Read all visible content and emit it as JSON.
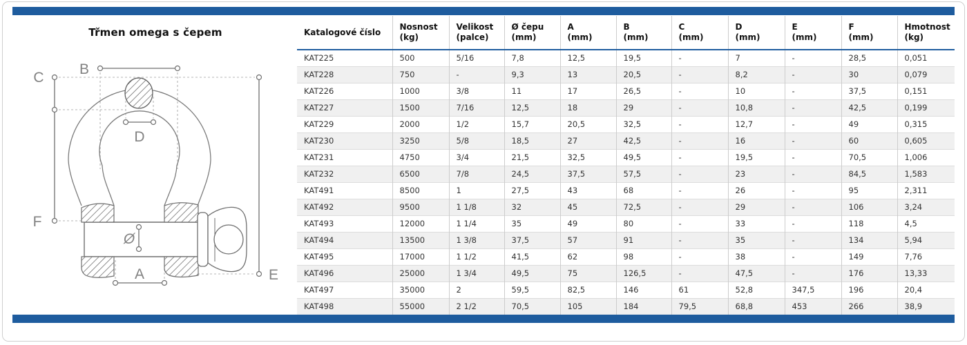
{
  "header": {
    "title": "Třmen omega s čepem"
  },
  "colors": {
    "accent": "#1e5c9e"
  },
  "diagram": {
    "labels": {
      "b": "B",
      "c": "C",
      "d": "D",
      "f": "F",
      "diameter": "Ø",
      "a": "A",
      "e": "E"
    }
  },
  "table": {
    "columns": [
      {
        "name": "Katalogové číslo",
        "unit": ""
      },
      {
        "name": "Nosnost",
        "unit": "(kg)"
      },
      {
        "name": "Velikost",
        "unit": "(palce)"
      },
      {
        "name": "Ø čepu",
        "unit": "(mm)"
      },
      {
        "name": "A",
        "unit": "(mm)"
      },
      {
        "name": "B",
        "unit": "(mm)"
      },
      {
        "name": "C",
        "unit": "(mm)"
      },
      {
        "name": "D",
        "unit": "(mm)"
      },
      {
        "name": "E",
        "unit": "(mm)"
      },
      {
        "name": "F",
        "unit": "(mm)"
      },
      {
        "name": "Hmotnost",
        "unit": "(kg)"
      }
    ],
    "rows": [
      [
        "KAT225",
        "500",
        "5/16",
        "7,8",
        "12,5",
        "19,5",
        "-",
        "7",
        "-",
        "28,5",
        "0,051"
      ],
      [
        "KAT228",
        "750",
        "-",
        "9,3",
        "13",
        "20,5",
        "-",
        "8,2",
        "-",
        "30",
        "0,079"
      ],
      [
        "KAT226",
        "1000",
        "3/8",
        "11",
        "17",
        "26,5",
        "-",
        "10",
        "-",
        "37,5",
        "0,151"
      ],
      [
        "KAT227",
        "1500",
        "7/16",
        "12,5",
        "18",
        "29",
        "-",
        "10,8",
        "-",
        "42,5",
        "0,199"
      ],
      [
        "KAT229",
        "2000",
        "1/2",
        "15,7",
        "20,5",
        "32,5",
        "-",
        "12,7",
        "-",
        "49",
        "0,315"
      ],
      [
        "KAT230",
        "3250",
        "5/8",
        "18,5",
        "27",
        "42,5",
        "-",
        "16",
        "-",
        "60",
        "0,605"
      ],
      [
        "KAT231",
        "4750",
        "3/4",
        "21,5",
        "32,5",
        "49,5",
        "-",
        "19,5",
        "-",
        "70,5",
        "1,006"
      ],
      [
        "KAT232",
        "6500",
        "7/8",
        "24,5",
        "37,5",
        "57,5",
        "-",
        "23",
        "-",
        "84,5",
        "1,583"
      ],
      [
        "KAT491",
        "8500",
        "1",
        "27,5",
        "43",
        "68",
        "-",
        "26",
        "-",
        "95",
        "2,311"
      ],
      [
        "KAT492",
        "9500",
        "1 1/8",
        "32",
        "45",
        "72,5",
        "-",
        "29",
        "-",
        "106",
        "3,24"
      ],
      [
        "KAT493",
        "12000",
        "1 1/4",
        "35",
        "49",
        "80",
        "-",
        "33",
        "-",
        "118",
        "4,5"
      ],
      [
        "KAT494",
        "13500",
        "1 3/8",
        "37,5",
        "57",
        "91",
        "-",
        "35",
        "-",
        "134",
        "5,94"
      ],
      [
        "KAT495",
        "17000",
        "1 1/2",
        "41,5",
        "62",
        "98",
        "-",
        "38",
        "-",
        "149",
        "7,76"
      ],
      [
        "KAT496",
        "25000",
        "1 3/4",
        "49,5",
        "75",
        "126,5",
        "-",
        "47,5",
        "-",
        "176",
        "13,33"
      ],
      [
        "KAT497",
        "35000",
        "2",
        "59,5",
        "82,5",
        "146",
        "61",
        "52,8",
        "347,5",
        "196",
        "20,4"
      ],
      [
        "KAT498",
        "55000",
        "2 1/2",
        "70,5",
        "105",
        "184",
        "79,5",
        "68,8",
        "453",
        "266",
        "38,9"
      ]
    ]
  }
}
